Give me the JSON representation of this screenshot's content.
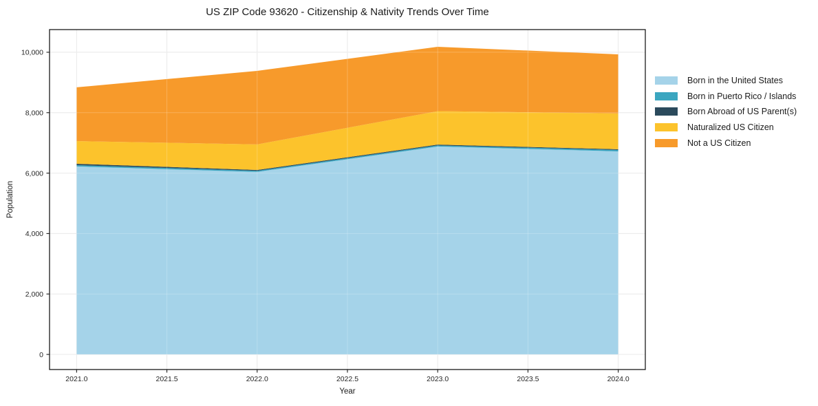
{
  "chart_data": {
    "type": "area",
    "stacked": true,
    "title": "US ZIP Code 93620 - Citizenship & Nativity Trends Over Time",
    "xlabel": "Year",
    "ylabel": "Population",
    "x": [
      2021,
      2022,
      2023,
      2024
    ],
    "series": [
      {
        "name": "Born in the United States",
        "color": "#a5d3e9",
        "values": [
          6220,
          6040,
          6880,
          6720
        ]
      },
      {
        "name": "Born in Puerto Rico / Islands",
        "color": "#3ba6c0",
        "values": [
          45,
          35,
          35,
          45
        ]
      },
      {
        "name": "Born Abroad of US Parent(s)",
        "color": "#2b4a5c",
        "values": [
          45,
          30,
          30,
          25
        ]
      },
      {
        "name": "Naturalized US Citizen",
        "color": "#fcc32c",
        "values": [
          750,
          845,
          1105,
          1185
        ]
      },
      {
        "name": "Not a US Citizen",
        "color": "#f79a2b",
        "values": [
          1780,
          2435,
          2130,
          1955
        ]
      }
    ],
    "totals": [
      8840,
      9385,
      10180,
      9930
    ],
    "xlim": [
      2020.85,
      2024.15
    ],
    "ylim": [
      -500,
      10750
    ],
    "x_ticks": [
      2021.0,
      2021.5,
      2022.0,
      2022.5,
      2023.0,
      2023.5,
      2024.0
    ],
    "x_tick_labels": [
      "2021.0",
      "2021.5",
      "2022.0",
      "2022.5",
      "2023.0",
      "2023.5",
      "2024.0"
    ],
    "y_ticks": [
      0,
      2000,
      4000,
      6000,
      8000,
      10000
    ],
    "y_tick_labels": [
      "0",
      "2,000",
      "4,000",
      "6,000",
      "8,000",
      "10,000"
    ],
    "grid": true,
    "legend_position": "outside-right",
    "colors": {
      "background": "#ffffff",
      "grid": "#e4e4e4",
      "spine": "#1a1a1a",
      "text": "#262626"
    }
  }
}
